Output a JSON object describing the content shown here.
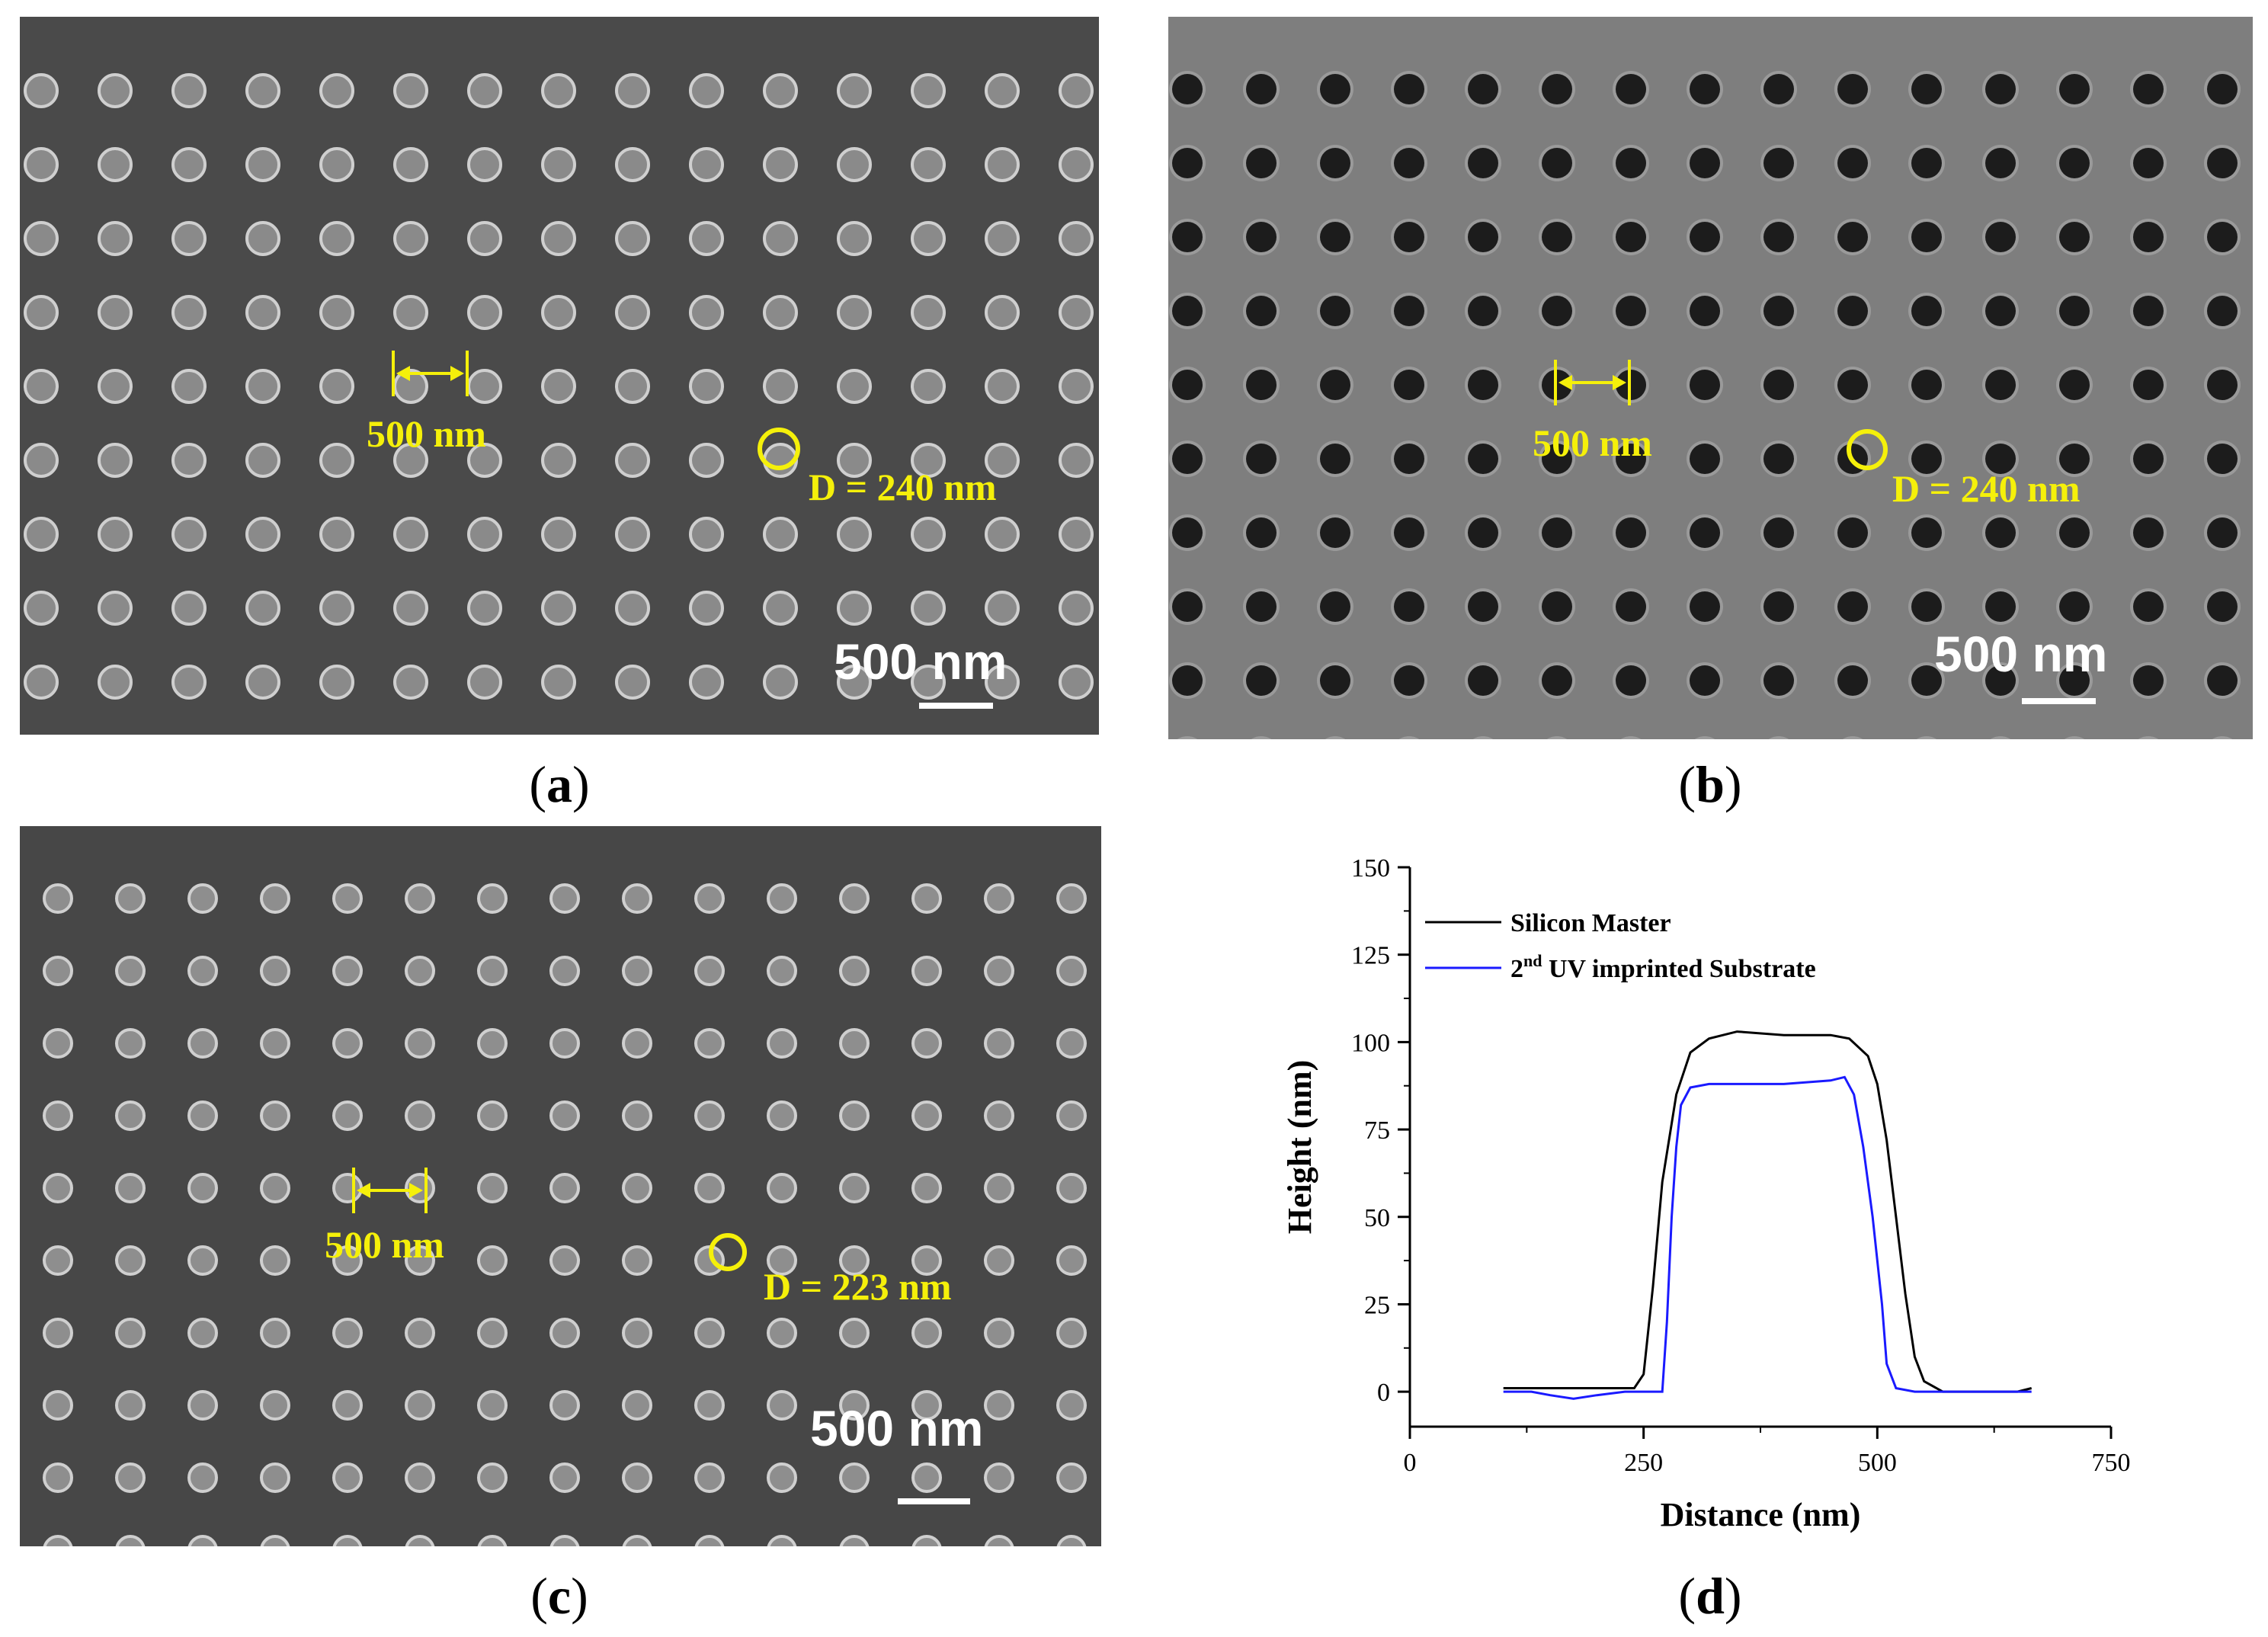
{
  "panels": {
    "a": {
      "caption_letter": "a",
      "pitch_label": "500 nm",
      "diameter_label": "D = 240 nm",
      "scalebar_label": "500 nm",
      "feature": "pillars",
      "colors": {
        "background": "#4a4a4a",
        "feature": "#8a8a8a",
        "annotation": "#f5f00a"
      }
    },
    "b": {
      "caption_letter": "b",
      "pitch_label": "500 nm",
      "diameter_label": "D = 240 nm",
      "scalebar_label": "500 nm",
      "feature": "holes",
      "colors": {
        "background": "#7e7e7e",
        "feature": "#1c1c1c",
        "annotation": "#f5f00a"
      }
    },
    "c": {
      "caption_letter": "c",
      "pitch_label": "500 nm",
      "diameter_label": "D = 223 nm",
      "scalebar_label": "500 nm",
      "feature": "pillars",
      "colors": {
        "background": "#474747",
        "feature": "#8e8e8e",
        "annotation": "#f5f00a"
      }
    },
    "d": {
      "caption_letter": "d"
    }
  },
  "chart_data": {
    "type": "line",
    "xlabel": "Distance (nm)",
    "ylabel": "Height (nm)",
    "xlim": [
      0,
      750
    ],
    "ylim": [
      -10,
      150
    ],
    "xticks": [
      0,
      250,
      500,
      750
    ],
    "yticks": [
      0,
      25,
      50,
      75,
      100,
      125,
      150
    ],
    "legend_position": "top-left",
    "series": [
      {
        "name": "Silicon Master",
        "color": "#000000",
        "x": [
          100,
          150,
          200,
          240,
          250,
          260,
          270,
          285,
          300,
          320,
          350,
          400,
          450,
          470,
          490,
          500,
          510,
          520,
          530,
          540,
          550,
          570,
          600,
          650,
          665
        ],
        "y": [
          1,
          1,
          1,
          1,
          5,
          30,
          60,
          85,
          97,
          101,
          103,
          102,
          102,
          101,
          96,
          88,
          72,
          50,
          28,
          10,
          3,
          0,
          0,
          0,
          1
        ]
      },
      {
        "name": "2nd UV imprinted Substrate",
        "name_parts": {
          "prefix": "2",
          "superscript": "nd",
          "suffix": " UV imprinted Substrate"
        },
        "color": "#1a1aff",
        "x": [
          100,
          130,
          150,
          175,
          200,
          230,
          260,
          270,
          275,
          280,
          285,
          290,
          300,
          320,
          350,
          400,
          450,
          465,
          475,
          485,
          495,
          505,
          510,
          520,
          540,
          570,
          600,
          650,
          665
        ],
        "y": [
          0,
          0,
          -1,
          -2,
          -1,
          0,
          0,
          0,
          20,
          50,
          70,
          82,
          87,
          88,
          88,
          88,
          89,
          90,
          85,
          70,
          50,
          25,
          8,
          1,
          0,
          0,
          0,
          0,
          0
        ]
      }
    ]
  }
}
